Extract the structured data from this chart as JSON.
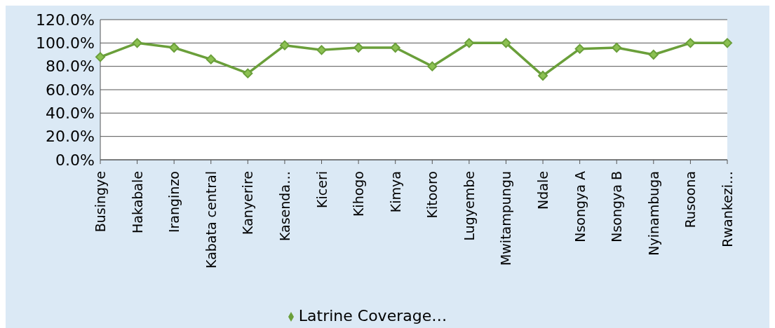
{
  "chart_data": {
    "type": "line",
    "categories": [
      "Busingye",
      "Hakabale",
      "Iranginzo",
      "Kabata central",
      "Kanyerire",
      "Kasenda…",
      "Kiceri",
      "Kihogo",
      "Kimya",
      "Kitooro",
      "Lugyembe",
      "Mwitampungu",
      "Ndale",
      "Nsongya A",
      "Nsongya B",
      "Nyinambuga",
      "Rusoona",
      "Rwankezi…"
    ],
    "series": [
      {
        "name": "Latrine Coverage…",
        "color": "#6a9f3a",
        "values": [
          88,
          100,
          96,
          86,
          74,
          98,
          94,
          96,
          96,
          80,
          100,
          100,
          72,
          95,
          96,
          90,
          100,
          100
        ]
      }
    ],
    "ylim": [
      0,
      120
    ],
    "yticks": [
      {
        "value": 0,
        "label": "0.0%"
      },
      {
        "value": 20,
        "label": "20.0%"
      },
      {
        "value": 40,
        "label": "40.0%"
      },
      {
        "value": 60,
        "label": "60.0%"
      },
      {
        "value": 80,
        "label": "80.0%"
      },
      {
        "value": 100,
        "label": "100.0%"
      },
      {
        "value": 120,
        "label": "120.0%"
      }
    ],
    "grid": "y",
    "legend": "bottom",
    "marker": "diamond"
  }
}
